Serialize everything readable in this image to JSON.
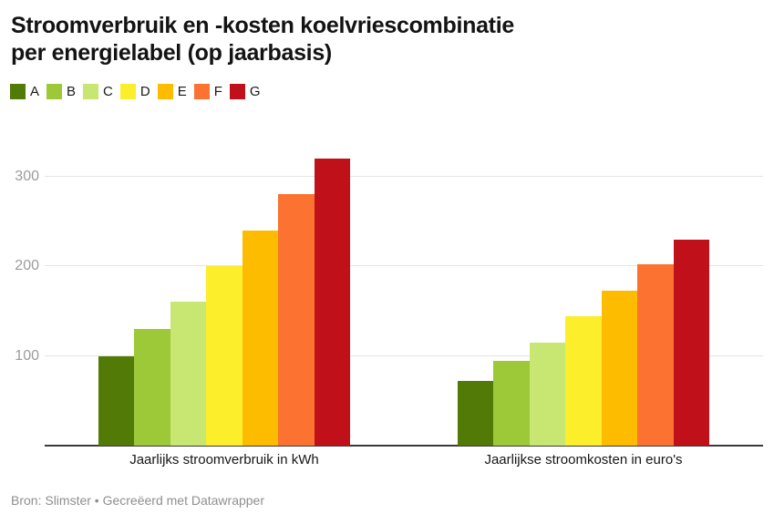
{
  "header": {
    "title_line1": "Stroomverbruik en -kosten koelvriescombinatie",
    "title_line2": "per energielabel (op jaarbasis)"
  },
  "footer": {
    "source": "Bron: Slimster • Gecreëerd met Datawrapper"
  },
  "chart_data": {
    "type": "bar",
    "title": "Stroomverbruik en -kosten koelvriescombinatie per energielabel (op jaarbasis)",
    "xlabel": "",
    "ylabel": "",
    "categories": [
      "Jaarlijks stroomverbruik in kWh",
      "Jaarlijkse stroomkosten in euro's"
    ],
    "series": [
      {
        "name": "A",
        "color": "#527a06",
        "values": [
          100,
          72
        ]
      },
      {
        "name": "B",
        "color": "#9dc837",
        "values": [
          130,
          94
        ]
      },
      {
        "name": "C",
        "color": "#c8e672",
        "values": [
          160,
          115
        ]
      },
      {
        "name": "D",
        "color": "#fcee2a",
        "values": [
          200,
          144
        ]
      },
      {
        "name": "E",
        "color": "#fdbc00",
        "values": [
          240,
          173
        ]
      },
      {
        "name": "F",
        "color": "#fc7230",
        "values": [
          280,
          202
        ]
      },
      {
        "name": "G",
        "color": "#c0111b",
        "values": [
          320,
          230
        ]
      }
    ],
    "yticks": [
      100,
      200,
      300
    ],
    "ylim": [
      0,
      329
    ],
    "grid": true,
    "legend_position": "top-left",
    "baseline_color": "#3a3a3a",
    "gridline_color": "#e4e4e4"
  }
}
